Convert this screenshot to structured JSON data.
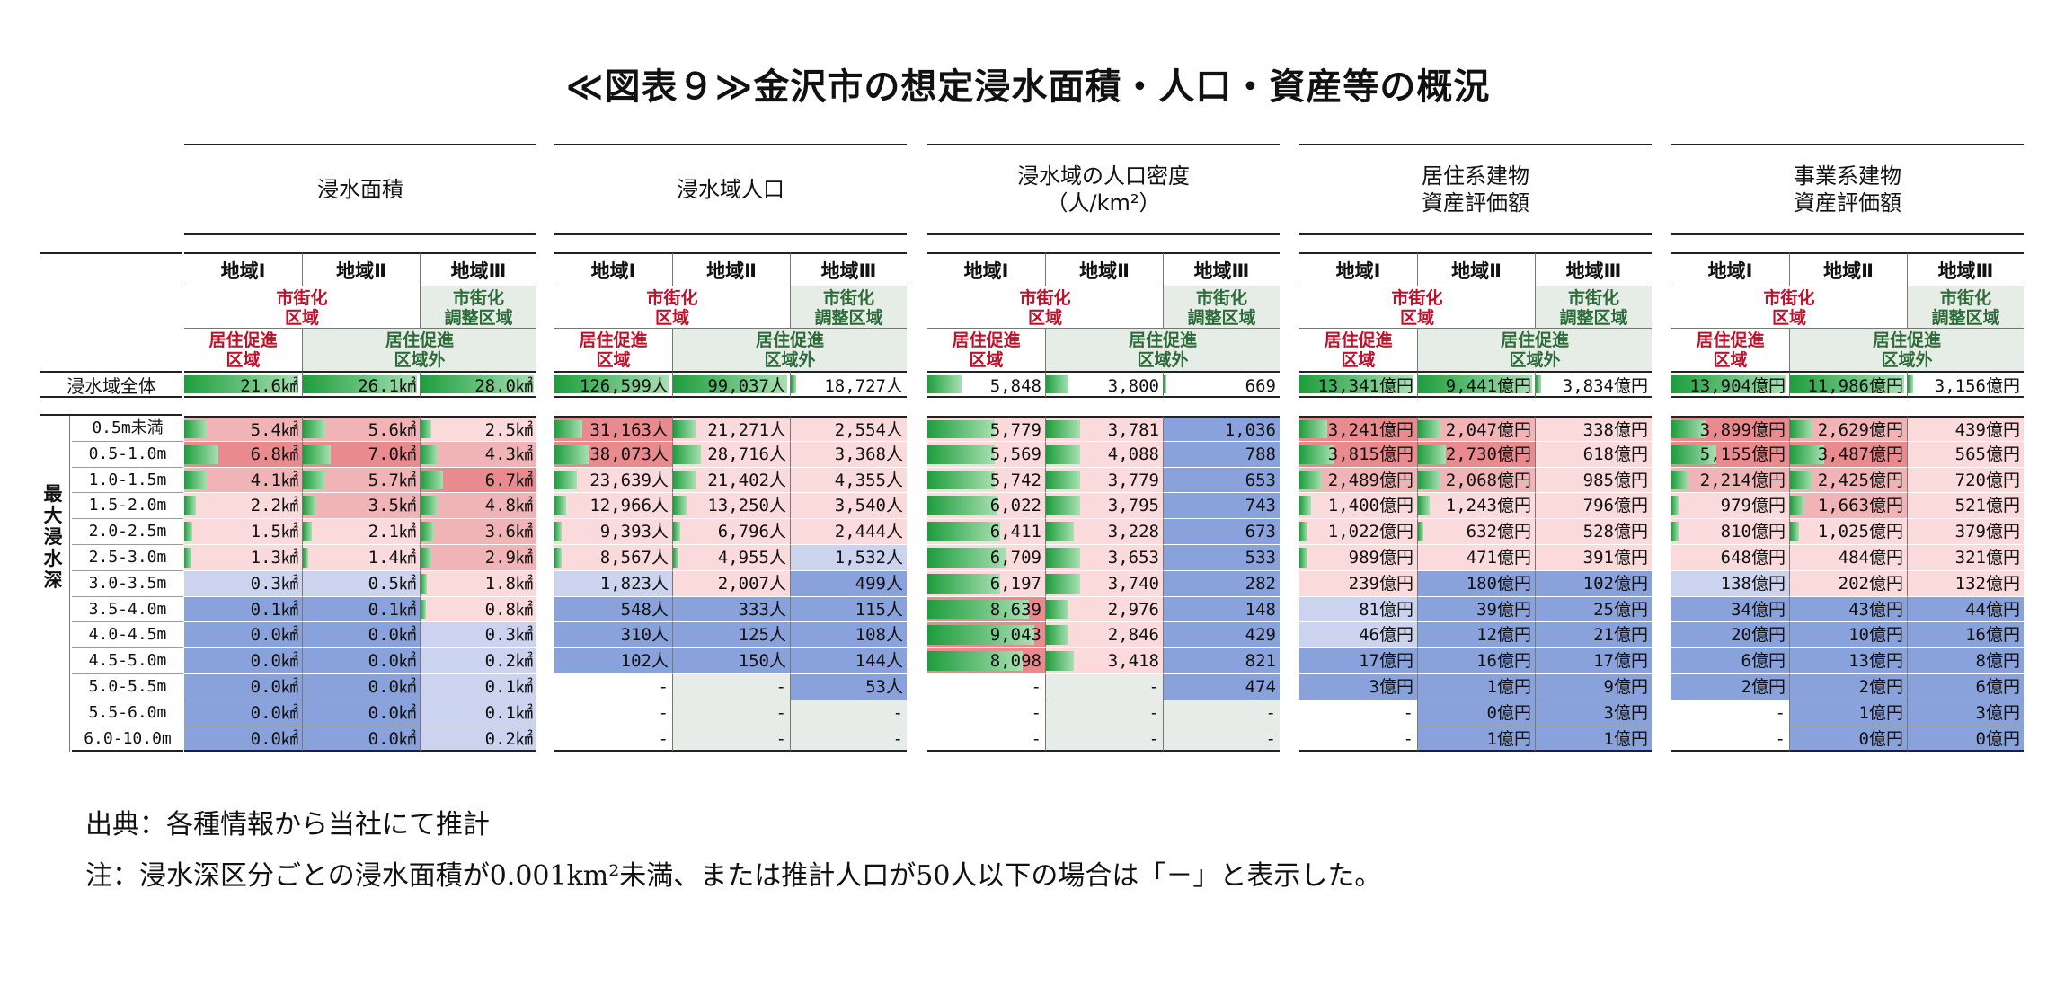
{
  "title": "≪図表９≫金沢市の想定浸水面積・人口・資産等の概況",
  "row_label_total": "浸水域全体",
  "depth_label": "最大浸水深",
  "depth_rows": [
    "0.5m未満",
    "0.5-1.0m",
    "1.0-1.5m",
    "1.5-2.0m",
    "2.0-2.5m",
    "2.5-3.0m",
    "3.0-3.5m",
    "3.5-4.0m",
    "4.0-4.5m",
    "4.5-5.0m",
    "5.0-5.5m",
    "5.5-6.0m",
    "6.0-10.0m"
  ],
  "region_headers": [
    "地域Ⅰ",
    "地域Ⅱ",
    "地域Ⅲ"
  ],
  "sub_urban": "市街化\n区域",
  "sub_adjust": "市街化\n調整区域",
  "sub_promo": "居住促進\n区域",
  "sub_outside": "居住促進\n区域外",
  "colors": {
    "red_strong": "#e98a8f",
    "red_mid": "#f1b4b6",
    "red_light": "#fadada",
    "blue": "#8aa2dc",
    "blue_light": "#cbd3ee",
    "gray": "#e8ece8",
    "bar": "#1e9d3d"
  },
  "sections": [
    {
      "title": "浸水面積",
      "total": [
        "21.6㎢",
        "26.1㎢",
        "28.0㎢"
      ],
      "total_bar": [
        1.0,
        1.0,
        1.0
      ],
      "rows": [
        [
          "5.4㎢",
          "5.6㎢",
          "2.5㎢"
        ],
        [
          "6.8㎢",
          "7.0㎢",
          "4.3㎢"
        ],
        [
          "4.1㎢",
          "5.7㎢",
          "6.7㎢"
        ],
        [
          "2.2㎢",
          "3.5㎢",
          "4.8㎢"
        ],
        [
          "1.5㎢",
          "2.1㎢",
          "3.6㎢"
        ],
        [
          "1.3㎢",
          "1.4㎢",
          "2.9㎢"
        ],
        [
          "0.3㎢",
          "0.5㎢",
          "1.8㎢"
        ],
        [
          "0.1㎢",
          "0.1㎢",
          "0.8㎢"
        ],
        [
          "0.0㎢",
          "0.0㎢",
          "0.3㎢"
        ],
        [
          "0.0㎢",
          "0.0㎢",
          "0.2㎢"
        ],
        [
          "0.0㎢",
          "0.0㎢",
          "0.1㎢"
        ],
        [
          "0.0㎢",
          "0.0㎢",
          "0.1㎢"
        ],
        [
          "0.0㎢",
          "0.0㎢",
          "0.2㎢"
        ]
      ],
      "bars": [
        [
          0.2,
          0.2,
          0.1
        ],
        [
          0.3,
          0.25,
          0.15
        ],
        [
          0.2,
          0.2,
          0.2
        ],
        [
          0.1,
          0.12,
          0.15
        ],
        [
          0.07,
          0.08,
          0.12
        ],
        [
          0.06,
          0.05,
          0.1
        ],
        [
          0,
          0,
          0.06
        ],
        [
          0,
          0,
          0.03
        ],
        [
          0,
          0,
          0
        ],
        [
          0,
          0,
          0
        ],
        [
          0,
          0,
          0
        ],
        [
          0,
          0,
          0
        ],
        [
          0,
          0,
          0
        ]
      ],
      "tones": [
        [
          "rm",
          "rm",
          "rl"
        ],
        [
          "rs",
          "rs",
          "rm"
        ],
        [
          "rm",
          "rm",
          "rs"
        ],
        [
          "rl",
          "rm",
          "rm"
        ],
        [
          "rl",
          "rl",
          "rm"
        ],
        [
          "rl",
          "rl",
          "rm"
        ],
        [
          "bl",
          "bl",
          "rl"
        ],
        [
          "b",
          "b",
          "rl"
        ],
        [
          "b",
          "b",
          "bl"
        ],
        [
          "b",
          "b",
          "bl"
        ],
        [
          "b",
          "b",
          "bl"
        ],
        [
          "b",
          "b",
          "bl"
        ],
        [
          "b",
          "b",
          "bl"
        ]
      ]
    },
    {
      "title": "浸水域人口",
      "total": [
        "126,599人",
        "99,037人",
        "18,727人"
      ],
      "total_bar": [
        1.0,
        1.0,
        0.05
      ],
      "rows": [
        [
          "31,163人",
          "21,271人",
          "2,554人"
        ],
        [
          "38,073人",
          "28,716人",
          "3,368人"
        ],
        [
          "23,639人",
          "21,402人",
          "4,355人"
        ],
        [
          "12,966人",
          "13,250人",
          "3,540人"
        ],
        [
          "9,393人",
          "6,796人",
          "2,444人"
        ],
        [
          "8,567人",
          "4,955人",
          "1,532人"
        ],
        [
          "1,823人",
          "2,007人",
          "499人"
        ],
        [
          "548人",
          "333人",
          "115人"
        ],
        [
          "310人",
          "125人",
          "108人"
        ],
        [
          "102人",
          "150人",
          "144人"
        ],
        [
          "-",
          "-",
          "53人"
        ],
        [
          "-",
          "-",
          "-"
        ],
        [
          "-",
          "-",
          "-"
        ]
      ],
      "bars": [
        [
          0.25,
          0.2,
          0
        ],
        [
          0.3,
          0.25,
          0
        ],
        [
          0.2,
          0.2,
          0
        ],
        [
          0.1,
          0.12,
          0
        ],
        [
          0.06,
          0.06,
          0
        ],
        [
          0.06,
          0.04,
          0
        ],
        [
          0,
          0,
          0
        ],
        [
          0,
          0,
          0
        ],
        [
          0,
          0,
          0
        ],
        [
          0,
          0,
          0
        ],
        [
          0,
          0,
          0
        ],
        [
          0,
          0,
          0
        ],
        [
          0,
          0,
          0
        ]
      ],
      "tones": [
        [
          "rs",
          "rl",
          "rl"
        ],
        [
          "rs",
          "rl",
          "rl"
        ],
        [
          "rl",
          "rl",
          "rl"
        ],
        [
          "rl",
          "rl",
          "rl"
        ],
        [
          "rl",
          "rl",
          "rl"
        ],
        [
          "rl",
          "rl",
          "bl"
        ],
        [
          "bl",
          "rl",
          "b"
        ],
        [
          "b",
          "b",
          "b"
        ],
        [
          "b",
          "b",
          "b"
        ],
        [
          "b",
          "b",
          "b"
        ],
        [
          "w",
          "g",
          "b"
        ],
        [
          "w",
          "g",
          "g"
        ],
        [
          "w",
          "g",
          "g"
        ]
      ]
    },
    {
      "title": "浸水域の人口密度\n（人/km²）",
      "total": [
        "5,848",
        "3,800",
        "669"
      ],
      "total_bar": [
        0.3,
        0.2,
        0.02
      ],
      "rows": [
        [
          "5,779",
          "3,781",
          "1,036"
        ],
        [
          "5,569",
          "4,088",
          "788"
        ],
        [
          "5,742",
          "3,779",
          "653"
        ],
        [
          "6,022",
          "3,795",
          "743"
        ],
        [
          "6,411",
          "3,228",
          "673"
        ],
        [
          "6,709",
          "3,653",
          "533"
        ],
        [
          "6,197",
          "3,740",
          "282"
        ],
        [
          "8,639",
          "2,976",
          "148"
        ],
        [
          "9,043",
          "2,846",
          "429"
        ],
        [
          "8,098",
          "3,418",
          "821"
        ],
        [
          "-",
          "-",
          "474"
        ],
        [
          "-",
          "-",
          "-"
        ],
        [
          "-",
          "-",
          "-"
        ]
      ],
      "bars": [
        [
          0.6,
          0.3,
          0
        ],
        [
          0.6,
          0.3,
          0
        ],
        [
          0.6,
          0.3,
          0
        ],
        [
          0.62,
          0.3,
          0
        ],
        [
          0.65,
          0.25,
          0
        ],
        [
          0.7,
          0.3,
          0
        ],
        [
          0.65,
          0.3,
          0
        ],
        [
          0.9,
          0.2,
          0
        ],
        [
          0.95,
          0.2,
          0
        ],
        [
          0.85,
          0.25,
          0
        ],
        [
          0,
          0,
          0
        ],
        [
          0,
          0,
          0
        ],
        [
          0,
          0,
          0
        ]
      ],
      "tones": [
        [
          "rl",
          "rl",
          "b"
        ],
        [
          "rl",
          "rl",
          "b"
        ],
        [
          "rl",
          "rl",
          "b"
        ],
        [
          "rl",
          "rl",
          "b"
        ],
        [
          "rl",
          "rl",
          "b"
        ],
        [
          "rl",
          "rl",
          "b"
        ],
        [
          "rl",
          "rl",
          "b"
        ],
        [
          "rs",
          "rl",
          "b"
        ],
        [
          "rs",
          "rl",
          "b"
        ],
        [
          "rs",
          "rl",
          "b"
        ],
        [
          "w",
          "g",
          "b"
        ],
        [
          "w",
          "g",
          "g"
        ],
        [
          "w",
          "g",
          "g"
        ]
      ]
    },
    {
      "title": "居住系建物\n資産評価額",
      "total": [
        "13,341億円",
        "9,441億円",
        "3,834億円"
      ],
      "total_bar": [
        1.0,
        1.0,
        0.05
      ],
      "rows": [
        [
          "3,241億円",
          "2,047億円",
          "338億円"
        ],
        [
          "3,815億円",
          "2,730億円",
          "618億円"
        ],
        [
          "2,489億円",
          "2,068億円",
          "985億円"
        ],
        [
          "1,400億円",
          "1,243億円",
          "796億円"
        ],
        [
          "1,022億円",
          "632億円",
          "528億円"
        ],
        [
          "989億円",
          "471億円",
          "391億円"
        ],
        [
          "239億円",
          "180億円",
          "102億円"
        ],
        [
          "81億円",
          "39億円",
          "25億円"
        ],
        [
          "46億円",
          "12億円",
          "21億円"
        ],
        [
          "17億円",
          "16億円",
          "17億円"
        ],
        [
          "3億円",
          "1億円",
          "9億円"
        ],
        [
          "-",
          "0億円",
          "3億円"
        ],
        [
          "-",
          "1億円",
          "1億円"
        ]
      ],
      "bars": [
        [
          0.25,
          0.2,
          0
        ],
        [
          0.3,
          0.25,
          0
        ],
        [
          0.2,
          0.2,
          0
        ],
        [
          0.1,
          0.1,
          0
        ],
        [
          0.07,
          0.05,
          0
        ],
        [
          0.07,
          0,
          0
        ],
        [
          0,
          0,
          0
        ],
        [
          0,
          0,
          0
        ],
        [
          0,
          0,
          0
        ],
        [
          0,
          0,
          0
        ],
        [
          0,
          0,
          0
        ],
        [
          0,
          0,
          0
        ],
        [
          0,
          0,
          0
        ]
      ],
      "tones": [
        [
          "rs",
          "rm",
          "rl"
        ],
        [
          "rs",
          "rs",
          "rl"
        ],
        [
          "rm",
          "rm",
          "rl"
        ],
        [
          "rl",
          "rl",
          "rl"
        ],
        [
          "rl",
          "rl",
          "rl"
        ],
        [
          "rl",
          "rl",
          "rl"
        ],
        [
          "rl",
          "b",
          "b"
        ],
        [
          "bl",
          "b",
          "b"
        ],
        [
          "bl",
          "b",
          "b"
        ],
        [
          "b",
          "b",
          "b"
        ],
        [
          "b",
          "b",
          "b"
        ],
        [
          "w",
          "b",
          "b"
        ],
        [
          "w",
          "b",
          "b"
        ]
      ]
    },
    {
      "title": "事業系建物\n資産評価額",
      "total": [
        "13,904億円",
        "11,986億円",
        "3,156億円"
      ],
      "total_bar": [
        1.0,
        1.0,
        0.05
      ],
      "rows": [
        [
          "3,899億円",
          "2,629億円",
          "439億円"
        ],
        [
          "5,155億円",
          "3,487億円",
          "565億円"
        ],
        [
          "2,214億円",
          "2,425億円",
          "720億円"
        ],
        [
          "979億円",
          "1,663億円",
          "521億円"
        ],
        [
          "810億円",
          "1,025億円",
          "379億円"
        ],
        [
          "648億円",
          "484億円",
          "321億円"
        ],
        [
          "138億円",
          "202億円",
          "132億円"
        ],
        [
          "34億円",
          "43億円",
          "44億円"
        ],
        [
          "20億円",
          "10億円",
          "16億円"
        ],
        [
          "6億円",
          "13億円",
          "8億円"
        ],
        [
          "2億円",
          "2億円",
          "6億円"
        ],
        [
          "-",
          "1億円",
          "3億円"
        ],
        [
          "-",
          "0億円",
          "0億円"
        ]
      ],
      "bars": [
        [
          0.3,
          0.2,
          0
        ],
        [
          0.4,
          0.3,
          0
        ],
        [
          0.15,
          0.2,
          0
        ],
        [
          0.06,
          0.13,
          0
        ],
        [
          0.06,
          0.08,
          0
        ],
        [
          0,
          0,
          0
        ],
        [
          0,
          0,
          0
        ],
        [
          0,
          0,
          0
        ],
        [
          0,
          0,
          0
        ],
        [
          0,
          0,
          0
        ],
        [
          0,
          0,
          0
        ],
        [
          0,
          0,
          0
        ],
        [
          0,
          0,
          0
        ]
      ],
      "tones": [
        [
          "rs",
          "rm",
          "rl"
        ],
        [
          "rs",
          "rs",
          "rl"
        ],
        [
          "rm",
          "rm",
          "rl"
        ],
        [
          "rl",
          "rm",
          "rl"
        ],
        [
          "rl",
          "rl",
          "rl"
        ],
        [
          "rl",
          "rl",
          "rl"
        ],
        [
          "bl",
          "rl",
          "rl"
        ],
        [
          "b",
          "b",
          "b"
        ],
        [
          "b",
          "b",
          "b"
        ],
        [
          "b",
          "b",
          "b"
        ],
        [
          "b",
          "b",
          "b"
        ],
        [
          "w",
          "b",
          "b"
        ],
        [
          "w",
          "b",
          "b"
        ]
      ]
    }
  ],
  "footer_source": "出典：各種情報から当社にて推計",
  "footer_note": "注：浸水深区分ごとの浸水面積が0.001km²未満、または推計人口が50人以下の場合は「－」と表示した。"
}
